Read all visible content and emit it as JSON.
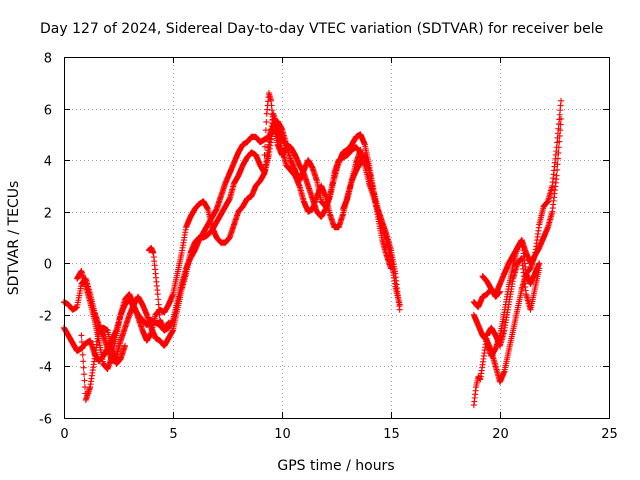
{
  "chart_data": {
    "type": "scatter",
    "title": "Day 127 of 2024, Sidereal Day-to-day VTEC variation (SDTVAR) for receiver bele",
    "xlabel": "GPS time / hours",
    "ylabel": "SDTVAR / TECUs",
    "xlim": [
      0,
      25
    ],
    "ylim": [
      -6,
      8
    ],
    "xticks": [
      "0",
      "5",
      "10",
      "15",
      "20",
      "25"
    ],
    "yticks": [
      "-6",
      "-4",
      "-2",
      "0",
      "2",
      "4",
      "6",
      "8"
    ],
    "grid": true,
    "marker": "+",
    "series": [
      {
        "name": "SDTVAR",
        "color": "#ff0000",
        "tracks": [
          {
            "x": [
              0.0,
              0.2,
              0.4,
              0.6,
              0.8,
              1.0,
              1.2,
              1.4,
              1.6,
              1.8,
              2.0,
              2.2,
              2.4,
              2.6,
              2.8,
              3.0,
              3.2,
              3.4,
              3.6,
              3.8,
              4.0,
              4.2,
              4.4,
              4.6,
              4.8,
              5.0,
              5.2,
              5.4,
              5.6,
              5.8,
              6.0,
              6.2,
              6.4,
              6.6,
              6.8,
              7.0,
              7.2,
              7.4,
              7.6,
              7.8,
              8.0,
              8.2,
              8.4,
              8.6,
              8.8,
              9.0,
              9.2,
              9.4,
              9.6,
              9.8,
              10.0,
              10.2,
              10.4,
              10.6,
              10.8,
              11.0,
              11.2,
              11.4,
              11.6,
              11.8,
              12.0,
              12.2,
              12.4,
              12.6,
              12.8,
              13.0,
              13.2,
              13.4,
              13.6,
              13.8,
              14.0,
              14.2,
              14.4,
              14.6,
              14.8,
              15.0,
              15.2,
              15.4
            ],
            "y": [
              -2.5,
              -2.8,
              -3.1,
              -3.4,
              -3.3,
              -3.1,
              -3.0,
              -3.5,
              -3.8,
              -3.6,
              -3.3,
              -3.0,
              -2.6,
              -2.0,
              -1.6,
              -1.4,
              -1.7,
              -2.0,
              -2.2,
              -2.4,
              -2.2,
              -2.3,
              -2.4,
              -2.6,
              -2.5,
              -2.2,
              -1.5,
              -0.8,
              -0.2,
              0.2,
              0.5,
              0.9,
              1.2,
              1.5,
              1.8,
              2.1,
              2.6,
              3.1,
              3.5,
              3.9,
              4.3,
              4.6,
              4.7,
              4.9,
              4.9,
              4.7,
              4.8,
              4.9,
              5.3,
              5.2,
              4.8,
              4.6,
              4.5,
              4.2,
              3.8,
              3.5,
              3.0,
              2.5,
              2.0,
              1.8,
              2.1,
              2.6,
              3.3,
              3.9,
              4.3,
              4.4,
              4.6,
              4.9,
              5.0,
              4.6,
              3.8,
              2.8,
              2.1,
              1.6,
              1.1,
              0.5,
              -0.4,
              -1.8
            ]
          },
          {
            "x": [
              0.0,
              0.2,
              0.4,
              0.6,
              0.8,
              1.0,
              1.2,
              1.4,
              1.6,
              1.8,
              2.0,
              2.2,
              2.4,
              2.6,
              2.8,
              3.0,
              3.2,
              3.4,
              3.6,
              3.8,
              4.0,
              4.2,
              4.4,
              4.6,
              4.8,
              5.0,
              5.2,
              5.4,
              5.6,
              5.8,
              6.0,
              6.2,
              6.4,
              6.6,
              6.8,
              7.0,
              7.2,
              7.4,
              7.6,
              7.8,
              8.0,
              8.2,
              8.4,
              8.6,
              8.8,
              9.0,
              9.2,
              9.4,
              9.6,
              9.8,
              10.0,
              10.2,
              10.4,
              10.6,
              10.8,
              11.0,
              11.2,
              11.4,
              11.6,
              11.8,
              12.0,
              12.2,
              12.4,
              12.6,
              12.8,
              13.0,
              13.2,
              13.4,
              13.6,
              13.8,
              14.0,
              14.2,
              14.4,
              14.6,
              14.8,
              15.0,
              15.2,
              15.4
            ],
            "y": [
              -1.5,
              -1.6,
              -1.8,
              -1.7,
              -0.8,
              -0.6,
              -1.2,
              -1.9,
              -2.4,
              -2.8,
              -3.3,
              -3.8,
              -3.6,
              -3.0,
              -2.5,
              -2.0,
              -1.6,
              -1.3,
              -1.6,
              -2.0,
              -2.5,
              -2.9,
              -3.0,
              -3.2,
              -2.9,
              -2.6,
              -1.8,
              -1.0,
              -0.4,
              0.4,
              0.8,
              1.0,
              1.0,
              1.1,
              1.3,
              1.6,
              1.9,
              2.2,
              2.5,
              3.1,
              3.4,
              3.8,
              4.1,
              4.3,
              4.2,
              3.8,
              3.5,
              4.2,
              5.4,
              5.5,
              5.2,
              4.6,
              4.0,
              3.6,
              3.2,
              3.6,
              4.0,
              3.7,
              3.2,
              2.4,
              2.2,
              2.6,
              3.5,
              4.0,
              4.1,
              4.2,
              4.4,
              4.5,
              4.3,
              3.8,
              3.1,
              2.6,
              2.0,
              1.4,
              0.9,
              0.2,
              -0.9,
              -1.6
            ]
          },
          {
            "x": [
              0.6,
              0.8,
              1.0,
              1.2,
              1.4,
              1.6,
              1.8,
              2.0,
              2.2,
              2.4,
              2.6,
              2.8,
              3.0,
              3.2,
              3.4,
              3.6,
              3.8,
              4.0,
              4.2,
              4.4,
              4.6,
              4.8,
              5.0,
              5.2,
              5.4,
              5.6,
              5.8,
              6.0,
              6.2,
              6.4,
              6.6,
              6.8,
              7.0,
              7.2,
              7.4,
              7.6,
              7.8,
              8.0,
              8.2,
              8.4,
              8.6,
              8.8,
              9.0,
              9.2,
              9.4,
              9.6,
              9.8,
              10.0,
              10.2,
              10.4,
              10.6,
              10.8,
              11.0,
              11.2,
              11.4,
              11.6,
              11.8,
              12.0,
              12.2,
              12.4,
              12.6,
              12.8,
              13.0,
              13.2,
              13.4,
              13.6,
              13.8,
              14.0,
              14.2,
              14.4,
              14.6,
              14.8,
              15.0
            ],
            "y": [
              -0.6,
              -0.3,
              -0.9,
              -1.5,
              -2.2,
              -3.0,
              -3.9,
              -4.1,
              -3.6,
              -2.8,
              -2.0,
              -1.4,
              -1.2,
              -1.6,
              -2.1,
              -2.6,
              -3.0,
              -2.7,
              -2.0,
              -1.8,
              -1.9,
              -1.6,
              -1.2,
              -0.4,
              0.4,
              1.4,
              1.8,
              2.1,
              2.3,
              2.4,
              2.1,
              1.4,
              1.0,
              0.8,
              0.8,
              1.0,
              1.5,
              2.0,
              2.2,
              2.5,
              2.6,
              3.0,
              3.2,
              3.5,
              4.6,
              5.8,
              5.2,
              4.4,
              3.8,
              3.6,
              3.4,
              3.0,
              2.4,
              2.0,
              2.1,
              2.6,
              3.0,
              2.6,
              1.9,
              1.4,
              1.4,
              1.9,
              2.6,
              3.2,
              3.6,
              3.9,
              4.2,
              3.6,
              2.8,
              1.8,
              0.9,
              0.3,
              -0.2
            ]
          },
          {
            "x": [
              0.8,
              1.0,
              1.2,
              1.6,
              1.8,
              2.0,
              2.2,
              2.4,
              2.6,
              2.8
            ],
            "y": [
              -2.8,
              -5.3,
              -4.8,
              -2.6,
              -2.5,
              -2.6,
              -3.4,
              -3.9,
              -3.7,
              -3.2
            ]
          },
          {
            "x": [
              3.9,
              4.0,
              4.1,
              4.2,
              4.3,
              4.4,
              4.6,
              4.8
            ],
            "y": [
              0.5,
              0.6,
              0.4,
              -0.4,
              -1.2,
              -2.2,
              -2.6,
              -2.3
            ]
          },
          {
            "x": [
              9.2,
              9.3,
              9.4,
              9.5,
              9.6,
              9.8,
              10.0,
              10.2
            ],
            "y": [
              4.2,
              5.8,
              6.6,
              6.3,
              5.4,
              4.6,
              4.2,
              4.5
            ]
          },
          {
            "x": [
              12.8,
              13.0,
              13.2,
              13.4,
              13.6
            ],
            "y": [
              2.1,
              2.5,
              3.2,
              3.9,
              4.4
            ]
          },
          {
            "x": [
              18.8,
              19.0,
              19.2,
              19.4,
              19.6,
              19.8,
              20.0,
              20.2,
              20.4,
              20.6,
              20.8,
              21.0,
              21.2,
              21.4,
              21.6,
              21.8,
              22.0,
              22.2,
              22.4,
              22.6,
              22.8
            ],
            "y": [
              -1.5,
              -1.7,
              -1.3,
              -1.2,
              -1.0,
              -1.2,
              -0.8,
              -0.4,
              0.0,
              0.3,
              0.6,
              0.9,
              0.4,
              0.0,
              0.3,
              1.5,
              2.2,
              2.4,
              3.0,
              4.5,
              6.3
            ]
          },
          {
            "x": [
              18.8,
              19.0,
              19.2,
              19.4,
              19.6,
              19.8,
              20.0,
              20.2,
              20.4,
              20.6,
              20.8,
              21.0,
              21.2,
              21.4,
              21.6,
              21.8,
              22.0,
              22.2,
              22.4,
              22.6,
              22.8
            ],
            "y": [
              -2.0,
              -2.4,
              -2.8,
              -3.0,
              -3.4,
              -4.0,
              -4.6,
              -4.2,
              -3.4,
              -2.6,
              -1.8,
              -1.0,
              -0.4,
              -0.2,
              0.3,
              0.6,
              1.0,
              1.4,
              2.0,
              3.4,
              5.6
            ]
          },
          {
            "x": [
              18.8,
              18.9,
              19.0,
              19.1,
              19.4,
              19.6,
              19.8,
              20.0,
              20.2,
              20.4,
              20.6,
              20.8,
              21.0,
              21.2,
              21.4,
              21.6,
              21.8
            ],
            "y": [
              -5.5,
              -4.8,
              -4.4,
              -4.5,
              -2.8,
              -2.5,
              -2.8,
              -3.2,
              -2.6,
              -1.6,
              -0.6,
              0.0,
              0.2,
              -1.2,
              -1.8,
              -1.0,
              -0.2
            ]
          },
          {
            "x": [
              19.4,
              19.6,
              19.8,
              20.0,
              20.2,
              20.4,
              20.6,
              20.8,
              21.0,
              21.2,
              21.4,
              21.6,
              21.8
            ],
            "y": [
              -3.1,
              -3.6,
              -3.3,
              -2.8,
              -1.9,
              -0.9,
              -0.1,
              0.6,
              0.9,
              -0.4,
              -0.8,
              -0.4,
              0.0
            ]
          },
          {
            "x": [
              19.2,
              19.4,
              19.6,
              19.8,
              20.0
            ],
            "y": [
              -0.5,
              -0.7,
              -1.0,
              -1.3,
              -1.1
            ]
          }
        ]
      }
    ]
  }
}
